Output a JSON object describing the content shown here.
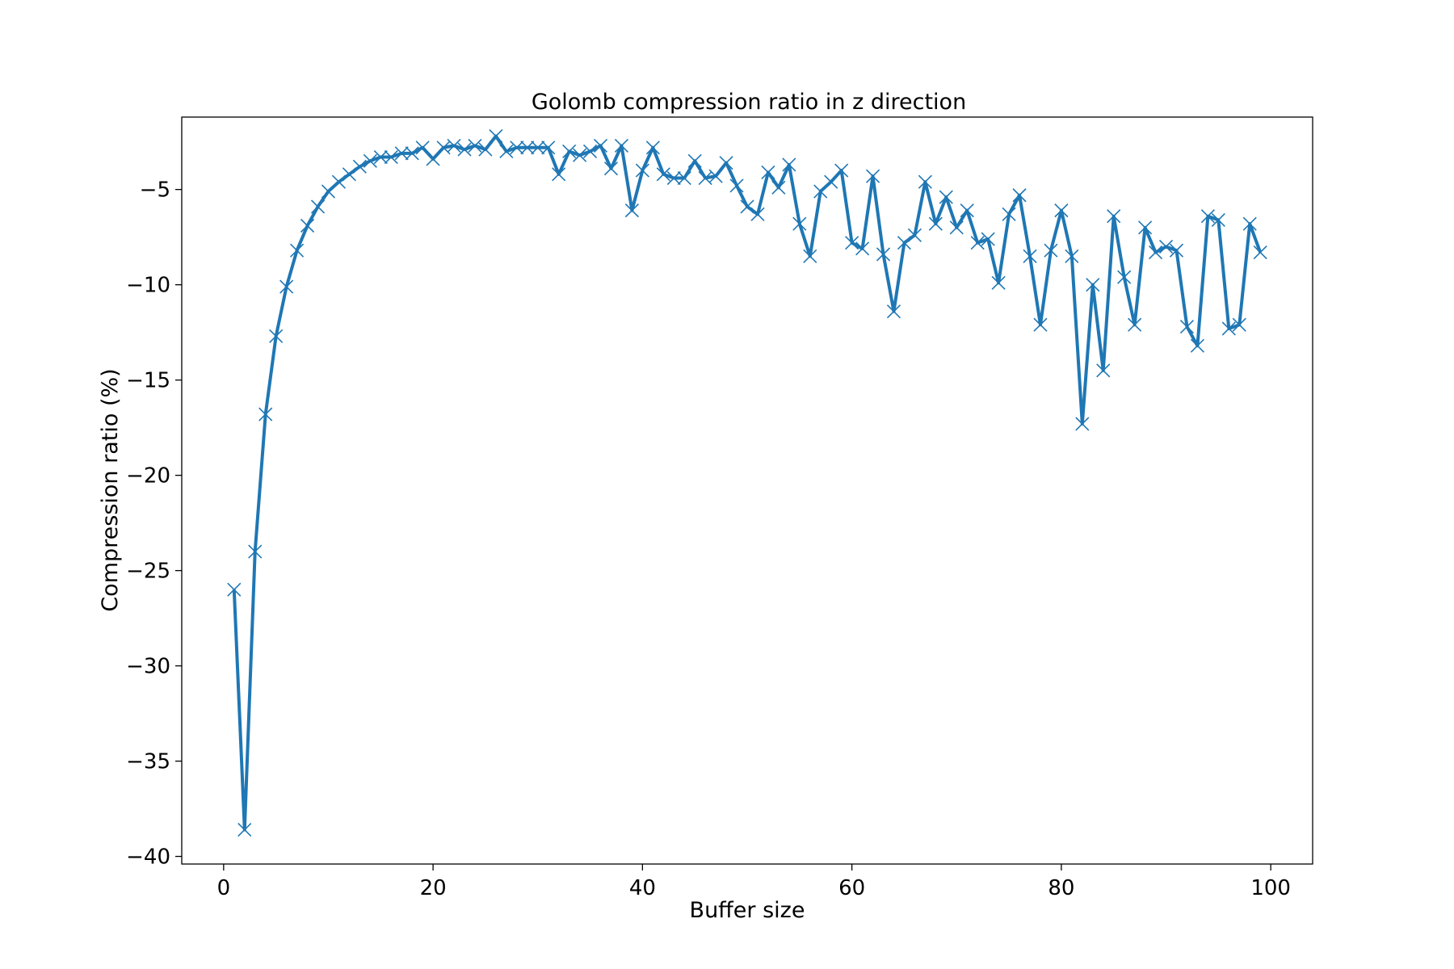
{
  "chart_data": {
    "type": "line",
    "title": "Golomb compression ratio in z direction",
    "xlabel": "Buffer size",
    "ylabel": "Compression ratio (%)",
    "xlim": [
      -4,
      104
    ],
    "ylim": [
      -40.4,
      -1.2
    ],
    "xticks": [
      0,
      20,
      40,
      60,
      80,
      100
    ],
    "yticks": [
      -5,
      -10,
      -15,
      -20,
      -25,
      -30,
      -35,
      -40
    ],
    "grid": false,
    "legend": "none",
    "colors": {
      "series": "#1f77b4"
    },
    "marker": "x",
    "series": [
      {
        "x": [
          1,
          2,
          3,
          4,
          5,
          6,
          7,
          8,
          9,
          10,
          11,
          12,
          13,
          14,
          15,
          16,
          17,
          18,
          19,
          20,
          21,
          22,
          23,
          24,
          25,
          26,
          27,
          28,
          29,
          30,
          31,
          32,
          33,
          34,
          35,
          36,
          37,
          38,
          39,
          40,
          41,
          42,
          43,
          44,
          45,
          46,
          47,
          48,
          49,
          50,
          51,
          52,
          53,
          54,
          55,
          56,
          57,
          58,
          59,
          60,
          61,
          62,
          63,
          64,
          65,
          66,
          67,
          68,
          69,
          70,
          71,
          72,
          73,
          74,
          75,
          76,
          77,
          78,
          79,
          80,
          81,
          82,
          83,
          84,
          85,
          86,
          87,
          88,
          89,
          90,
          91,
          92,
          93,
          94,
          95,
          96,
          97,
          98,
          99
        ],
        "values": [
          -26.0,
          -38.6,
          -24.0,
          -16.8,
          -12.7,
          -10.1,
          -8.2,
          -6.9,
          -5.9,
          -5.1,
          -4.6,
          -4.2,
          -3.8,
          -3.5,
          -3.3,
          -3.3,
          -3.1,
          -3.1,
          -2.8,
          -3.4,
          -2.8,
          -2.7,
          -2.9,
          -2.7,
          -2.9,
          -2.2,
          -3.0,
          -2.8,
          -2.8,
          -2.8,
          -2.8,
          -4.2,
          -3.0,
          -3.2,
          -3.0,
          -2.7,
          -3.9,
          -2.7,
          -6.1,
          -4.0,
          -2.8,
          -4.2,
          -4.4,
          -4.4,
          -3.5,
          -4.4,
          -4.3,
          -3.6,
          -4.8,
          -5.9,
          -6.3,
          -4.1,
          -4.9,
          -3.7,
          -6.8,
          -8.5,
          -5.1,
          -4.6,
          -4.0,
          -7.8,
          -8.1,
          -4.3,
          -8.4,
          -11.4,
          -7.8,
          -7.4,
          -4.6,
          -6.8,
          -5.4,
          -7.0,
          -6.1,
          -7.8,
          -7.6,
          -9.9,
          -6.3,
          -5.3,
          -8.5,
          -12.1,
          -8.2,
          -6.1,
          -8.5,
          -17.3,
          -10.0,
          -14.5,
          -6.4,
          -9.6,
          -12.1,
          -7.0,
          -8.3,
          -8.0,
          -8.2,
          -12.2,
          -13.2,
          -6.4,
          -6.6,
          -12.3,
          -12.1,
          -6.8,
          -8.3
        ]
      }
    ]
  }
}
